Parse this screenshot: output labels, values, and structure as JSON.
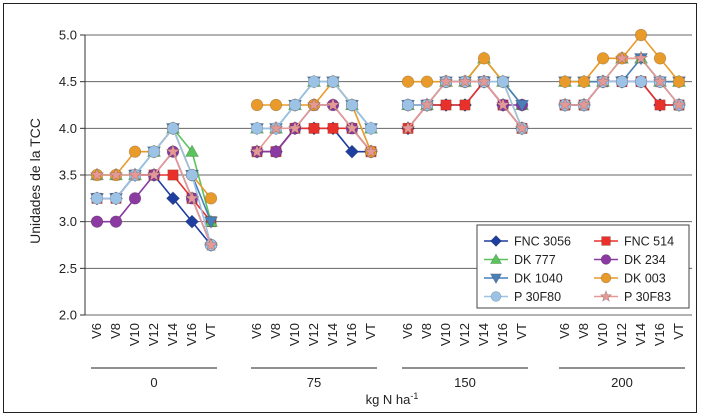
{
  "chart_data": {
    "type": "line",
    "ylabel": "Unidades de la TCC",
    "xlabel": "kg N ha-1",
    "ylim": [
      2.0,
      5.0
    ],
    "yticks": [
      2.0,
      2.5,
      3.0,
      3.5,
      4.0,
      4.5,
      5.0
    ],
    "grid": true,
    "legend_placement": "bottom-right",
    "stages": [
      "V6",
      "V8",
      "V10",
      "V12",
      "V14",
      "V16",
      "VT"
    ],
    "groups": [
      "0",
      "75",
      "150",
      "200"
    ],
    "series": [
      {
        "name": "FNC 3056",
        "color": "#1f3fa0",
        "marker": "diamond",
        "values": [
          [
            3.25,
            3.25,
            3.5,
            3.5,
            3.25,
            3.0,
            2.75
          ],
          [
            3.75,
            3.75,
            4.0,
            4.0,
            4.0,
            3.75,
            3.75
          ],
          [
            4.0,
            4.25,
            4.25,
            4.25,
            4.5,
            4.25,
            4.0
          ],
          [
            4.25,
            4.25,
            4.5,
            4.5,
            4.5,
            4.25,
            4.25
          ]
        ]
      },
      {
        "name": "FNC 514",
        "color": "#e8312a",
        "marker": "square",
        "values": [
          [
            3.25,
            3.25,
            3.5,
            3.5,
            3.5,
            3.25,
            3.0
          ],
          [
            3.75,
            3.75,
            4.0,
            4.0,
            4.0,
            4.0,
            3.75
          ],
          [
            4.0,
            4.25,
            4.25,
            4.25,
            4.5,
            4.25,
            4.0
          ],
          [
            4.25,
            4.25,
            4.5,
            4.5,
            4.5,
            4.25,
            4.25
          ]
        ]
      },
      {
        "name": "DK 777",
        "color": "#5cc35c",
        "marker": "triangle-up",
        "values": [
          [
            3.5,
            3.5,
            3.5,
            3.75,
            4.0,
            3.75,
            3.0
          ],
          [
            4.0,
            4.0,
            4.25,
            4.5,
            4.5,
            4.25,
            4.0
          ],
          [
            4.25,
            4.25,
            4.5,
            4.5,
            4.75,
            4.5,
            4.25
          ],
          [
            4.5,
            4.5,
            4.5,
            4.75,
            4.75,
            4.5,
            4.5
          ]
        ]
      },
      {
        "name": "DK 234",
        "color": "#8a3aa0",
        "marker": "circle",
        "values": [
          [
            3.0,
            3.0,
            3.25,
            3.5,
            3.75,
            3.25,
            2.75
          ],
          [
            3.75,
            3.75,
            4.0,
            4.25,
            4.25,
            4.0,
            3.75
          ],
          [
            4.25,
            4.25,
            4.5,
            4.5,
            4.5,
            4.25,
            4.25
          ],
          [
            4.25,
            4.25,
            4.5,
            4.5,
            4.5,
            4.5,
            4.25
          ]
        ]
      },
      {
        "name": "DK 1040",
        "color": "#4a7fb8",
        "marker": "triangle-down",
        "values": [
          [
            3.25,
            3.25,
            3.5,
            3.75,
            4.0,
            3.5,
            3.0
          ],
          [
            4.0,
            4.0,
            4.25,
            4.5,
            4.5,
            4.25,
            4.0
          ],
          [
            4.25,
            4.25,
            4.5,
            4.5,
            4.5,
            4.5,
            4.25
          ],
          [
            4.5,
            4.5,
            4.5,
            4.5,
            4.75,
            4.5,
            4.5
          ]
        ]
      },
      {
        "name": "DK 003",
        "color": "#e89a2a",
        "marker": "circle",
        "values": [
          [
            3.5,
            3.5,
            3.75,
            3.75,
            4.0,
            3.5,
            3.25
          ],
          [
            4.25,
            4.25,
            4.25,
            4.25,
            4.5,
            4.25,
            3.75
          ],
          [
            4.5,
            4.5,
            4.5,
            4.5,
            4.75,
            4.5,
            4.0
          ],
          [
            4.5,
            4.5,
            4.75,
            4.75,
            5.0,
            4.75,
            4.5
          ]
        ]
      },
      {
        "name": "P 30F80",
        "color": "#9cc2e6",
        "marker": "circle",
        "values": [
          [
            3.25,
            3.25,
            3.5,
            3.75,
            4.0,
            3.5,
            2.75
          ],
          [
            4.0,
            4.0,
            4.25,
            4.5,
            4.5,
            4.25,
            4.0
          ],
          [
            4.25,
            4.25,
            4.5,
            4.5,
            4.5,
            4.5,
            4.0
          ],
          [
            4.25,
            4.25,
            4.5,
            4.5,
            4.5,
            4.5,
            4.25
          ]
        ]
      },
      {
        "name": "P 30F83",
        "color": "#e39a96",
        "marker": "star",
        "values": [
          [
            3.5,
            3.5,
            3.5,
            3.5,
            3.75,
            3.25,
            2.75
          ],
          [
            3.75,
            4.0,
            4.0,
            4.25,
            4.25,
            4.0,
            3.75
          ],
          [
            4.0,
            4.25,
            4.5,
            4.5,
            4.5,
            4.25,
            4.0
          ],
          [
            4.25,
            4.25,
            4.5,
            4.75,
            4.75,
            4.5,
            4.25
          ]
        ]
      }
    ]
  }
}
